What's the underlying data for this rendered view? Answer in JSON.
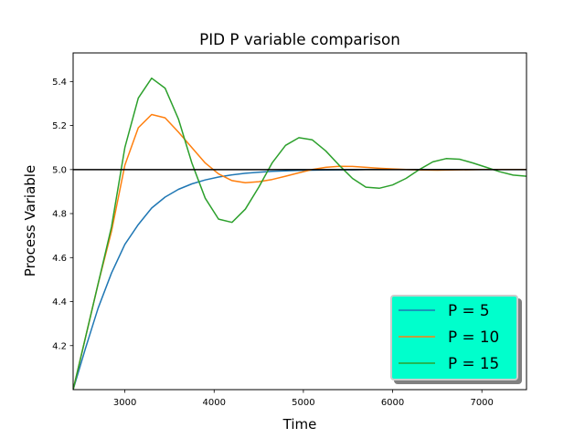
{
  "chart_data": {
    "type": "line",
    "title": "PID P variable comparison",
    "xlabel": "Time",
    "ylabel": "Process Variable",
    "xlim": [
      2420,
      7500
    ],
    "ylim": [
      4.0,
      5.53
    ],
    "xticks": [
      3000,
      4000,
      5000,
      6000,
      7000
    ],
    "yticks": [
      4.2,
      4.4,
      4.6,
      4.8,
      5.0,
      5.2,
      5.4
    ],
    "grid": false,
    "legend_position": "lower-right",
    "legend_facecolor": "#00ffcc",
    "reference_line": {
      "y": 5.0,
      "color": "#000000"
    },
    "series": [
      {
        "name": "P = 5",
        "color": "#1f77b4",
        "x": [
          2420,
          2560,
          2700,
          2850,
          3000,
          3150,
          3300,
          3450,
          3600,
          3750,
          3900,
          4050,
          4200,
          4350,
          4500,
          4650,
          4800,
          4950,
          5100,
          5250,
          5400,
          5550,
          5700,
          5850,
          6000,
          6500,
          7000,
          7500
        ],
        "y": [
          4.0,
          4.19,
          4.37,
          4.53,
          4.66,
          4.75,
          4.825,
          4.875,
          4.91,
          4.935,
          4.953,
          4.966,
          4.976,
          4.983,
          4.988,
          4.992,
          4.994,
          4.996,
          4.997,
          4.998,
          4.999,
          4.999,
          5.0,
          5.0,
          5.0,
          5.0,
          5.0,
          5.0
        ]
      },
      {
        "name": "P = 10",
        "color": "#ff7f0e",
        "x": [
          2420,
          2560,
          2700,
          2850,
          3000,
          3150,
          3300,
          3450,
          3600,
          3750,
          3900,
          4050,
          4200,
          4350,
          4500,
          4650,
          4800,
          4950,
          5100,
          5250,
          5400,
          5550,
          5700,
          5850,
          6000,
          6150,
          6300,
          6500,
          7000,
          7500
        ],
        "y": [
          4.0,
          4.24,
          4.48,
          4.72,
          5.02,
          5.19,
          5.25,
          5.235,
          5.17,
          5.1,
          5.03,
          4.98,
          4.95,
          4.94,
          4.945,
          4.955,
          4.97,
          4.985,
          5.0,
          5.01,
          5.015,
          5.014,
          5.01,
          5.006,
          5.003,
          5.0,
          4.998,
          4.997,
          5.0,
          5.0
        ]
      },
      {
        "name": "P = 15",
        "color": "#2ca02c",
        "x": [
          2420,
          2560,
          2700,
          2850,
          3000,
          3150,
          3300,
          3450,
          3600,
          3750,
          3900,
          4050,
          4200,
          4350,
          4500,
          4650,
          4800,
          4950,
          5100,
          5250,
          5400,
          5550,
          5700,
          5850,
          6000,
          6150,
          6300,
          6450,
          6600,
          6750,
          6900,
          7050,
          7200,
          7350,
          7500
        ],
        "y": [
          4.0,
          4.24,
          4.48,
          4.74,
          5.1,
          5.325,
          5.415,
          5.37,
          5.23,
          5.03,
          4.87,
          4.775,
          4.76,
          4.82,
          4.92,
          5.03,
          5.11,
          5.145,
          5.135,
          5.085,
          5.02,
          4.96,
          4.92,
          4.915,
          4.93,
          4.96,
          5.0,
          5.035,
          5.05,
          5.047,
          5.03,
          5.01,
          4.99,
          4.975,
          4.97
        ]
      }
    ]
  }
}
